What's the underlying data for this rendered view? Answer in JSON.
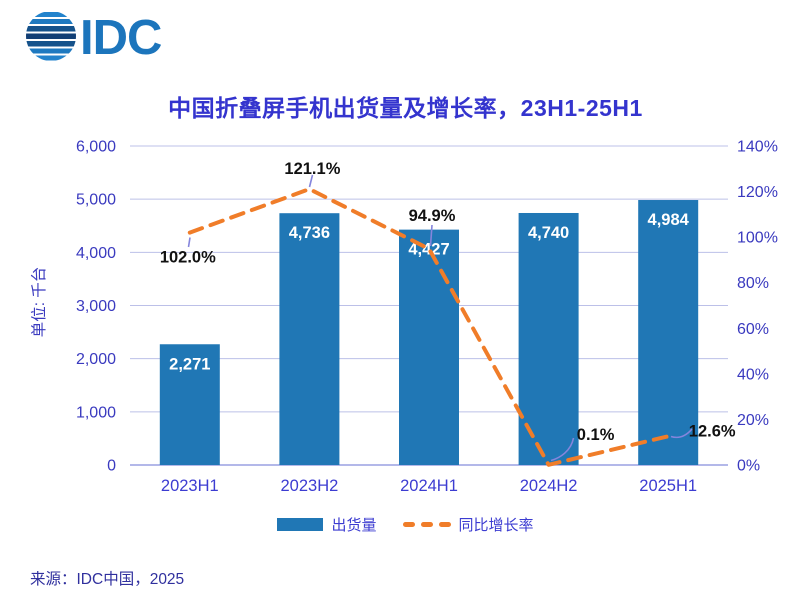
{
  "logo": {
    "brand": "IDC"
  },
  "header": {
    "title": "中国折叠屏手机出货量及增长率，23H1-25H1"
  },
  "chart_data": {
    "type": "bar+line combo",
    "categories": [
      "2023H1",
      "2023H2",
      "2024H1",
      "2024H2",
      "2025H1"
    ],
    "series": [
      {
        "name": "出货量",
        "type": "bar",
        "axis": "left",
        "values": [
          2271,
          4736,
          4427,
          4740,
          4984
        ],
        "labels": [
          "2,271",
          "4,736",
          "4,427",
          "4,740",
          "4,984"
        ],
        "color": "#2077B5"
      },
      {
        "name": "同比增长率",
        "type": "line",
        "axis": "right",
        "style": "dashed",
        "values": [
          102.0,
          121.1,
          94.9,
          0.1,
          12.6
        ],
        "labels": [
          "102.0%",
          "121.1%",
          "94.9%",
          "0.1%",
          "12.6%"
        ],
        "color": "#F07D29"
      }
    ],
    "left_axis": {
      "title": "单位: 千台",
      "min": 0,
      "max": 6000,
      "step": 1000,
      "tick_labels": [
        "6,000",
        "5,000",
        "4,000",
        "3,000",
        "2,000",
        "1,000",
        "0"
      ]
    },
    "right_axis": {
      "min": 0,
      "max": 140,
      "step": 20,
      "tick_labels": [
        "140%",
        "120%",
        "100%",
        "80%",
        "60%",
        "40%",
        "20%",
        "0%"
      ]
    },
    "grid": "horizontal",
    "legend_position": "bottom"
  },
  "legend": {
    "items": [
      {
        "label": "出货量",
        "swatch": "bar"
      },
      {
        "label": "同比增长率",
        "swatch": "dashed-line"
      }
    ]
  },
  "footer": {
    "source": "来源：IDC中国，2025"
  },
  "colors": {
    "bar": "#2077B5",
    "line": "#F07D29",
    "title": "#3434CE",
    "axis_text": "#3A3ABF",
    "category_text": "#3C3CD1",
    "grid": "#BCC0E8",
    "axis_line": "#9AA0E2",
    "bar_label": "#FFFFFF",
    "growth_label": "#111111",
    "leader_line": "#8585DC",
    "logo_blue": "#1C75BC",
    "source_text": "#30309E"
  }
}
